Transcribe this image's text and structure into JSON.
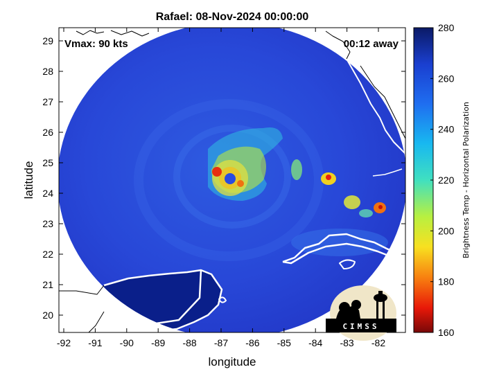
{
  "title": "Rafael: 08-Nov-2024 00:00:00",
  "xlabel": "longitude",
  "ylabel": "latitude",
  "vmax_label": "Vmax: 90 kts",
  "time_label": "00:12 away",
  "x_ticks": [
    "-92",
    "-91",
    "-90",
    "-89",
    "-88",
    "-87",
    "-86",
    "-85",
    "-84",
    "-83",
    "-82"
  ],
  "y_ticks": [
    "29",
    "28",
    "27",
    "26",
    "25",
    "24",
    "23",
    "22",
    "21",
    "20"
  ],
  "colorbar": {
    "label": "Brightness Temp - Horizontal Polarization",
    "ticks": [
      "280",
      "260",
      "240",
      "220",
      "200",
      "180",
      "160"
    ]
  },
  "logo_text": "CIMSS",
  "colors": {
    "background_field": "#2542d6",
    "land_dark": "#0a1f8a",
    "coastline": "#ffffff"
  }
}
